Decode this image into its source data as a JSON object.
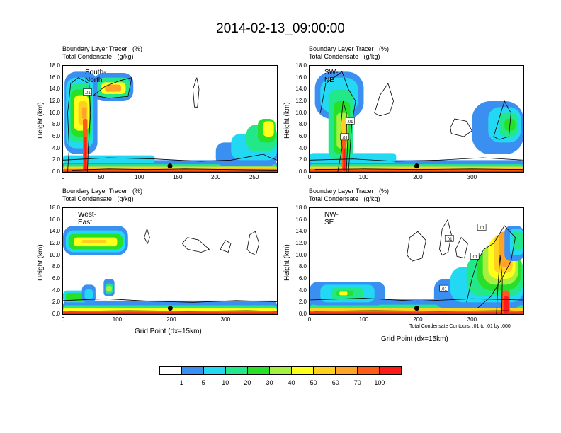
{
  "title": "2014-02-13_09:00:00",
  "colors": {
    "levels": [
      "#ffffff",
      "#3a8ff0",
      "#22d8f2",
      "#22e88a",
      "#28e028",
      "#a8f040",
      "#ffff1c",
      "#ffd020",
      "#ffa428",
      "#ff5a18",
      "#ff1a1a"
    ],
    "contour": "#000000"
  },
  "chart_data": [
    {
      "type": "heatmap",
      "field_label": "Boundary Layer Tracer   (%)",
      "contour_label": "Total Condensate   (g/kg)",
      "cross_section": "South-North",
      "ylabel": "Height (km)",
      "xlabel": "",
      "yticks": [
        "0.0",
        "2.0",
        "4.0",
        "6.0",
        "8.0",
        "10.0",
        "12.0",
        "14.0",
        "16.0",
        "18.0"
      ],
      "xticks": [
        "0",
        "50",
        "100",
        "150",
        "200",
        "250"
      ],
      "xlim": [
        0,
        280
      ],
      "ylim": [
        0,
        18
      ],
      "marker": {
        "x": 140,
        "y": 1.0
      },
      "contour_value_labels": [
        ".01"
      ]
    },
    {
      "type": "heatmap",
      "field_label": "Boundary Layer Tracer   (%)",
      "contour_label": "Total Condensate   (g/kg)",
      "cross_section": "SW-NE",
      "ylabel": "Height (km)",
      "xlabel": "",
      "yticks": [
        "0.0",
        "2.0",
        "4.0",
        "6.0",
        "8.0",
        "10.0",
        "12.0",
        "14.0",
        "16.0",
        "18.0"
      ],
      "xticks": [
        "0",
        "100",
        "200",
        "300"
      ],
      "xlim": [
        0,
        395
      ],
      "ylim": [
        0,
        18
      ],
      "marker": {
        "x": 198,
        "y": 1.0
      },
      "contour_value_labels": [
        ".01",
        ".01"
      ]
    },
    {
      "type": "heatmap",
      "field_label": "Boundary Layer Tracer   (%)",
      "contour_label": "Total Condensate   (g/kg)",
      "cross_section": "West-East",
      "ylabel": "Height (km)",
      "xlabel": "Grid Point (dx=15km)",
      "yticks": [
        "0.0",
        "2.0",
        "4.0",
        "6.0",
        "8.0",
        "10.0",
        "12.0",
        "14.0",
        "16.0",
        "18.0"
      ],
      "xticks": [
        "0",
        "100",
        "200",
        "300"
      ],
      "xlim": [
        0,
        395
      ],
      "ylim": [
        0,
        18
      ],
      "marker": {
        "x": 198,
        "y": 1.0
      },
      "contour_value_labels": []
    },
    {
      "type": "heatmap",
      "field_label": "Boundary Layer Tracer   (%)",
      "contour_label": "Total Condensate   (g/kg)",
      "cross_section": "NW-SE",
      "ylabel": "Height (km)",
      "xlabel": "Grid Point (dx=15km)",
      "yticks": [
        "0.0",
        "2.0",
        "4.0",
        "6.0",
        "8.0",
        "10.0",
        "12.0",
        "14.0",
        "16.0",
        "18.0"
      ],
      "xticks": [
        "0",
        "100",
        "200",
        "300"
      ],
      "xlim": [
        0,
        395
      ],
      "ylim": [
        0,
        18
      ],
      "marker": {
        "x": 198,
        "y": 1.0
      },
      "contour_value_labels": [
        ".01",
        ".01",
        ".01",
        ".01"
      ],
      "note": "Total Condensate Contours: .01 to .01 by .000"
    }
  ],
  "legend": {
    "labels": [
      "1",
      "5",
      "10",
      "20",
      "30",
      "40",
      "50",
      "60",
      "70",
      "100"
    ]
  }
}
